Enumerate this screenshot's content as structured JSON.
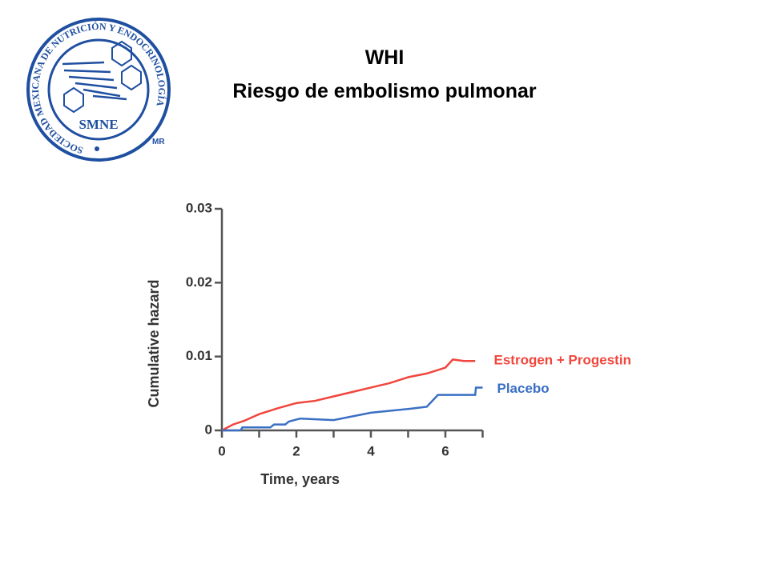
{
  "logo": {
    "ring_text": "SOCIEDAD MEXICANA DE NUTRICIÓN Y ENDOCRINOLOGÍA",
    "acronym": "SMNE",
    "mark": "MR"
  },
  "slide_title": [
    "WHI",
    "Riesgo de embolismo pulmonar"
  ],
  "chart_data": {
    "type": "line",
    "xlabel": "Time, years",
    "ylabel": "Cumulative hazard",
    "xlim": [
      0,
      7
    ],
    "xticks": [
      0,
      2,
      4,
      6
    ],
    "xminorticks": [
      1,
      3,
      5,
      7
    ],
    "ylim": [
      0,
      0.03
    ],
    "yticks": [
      0,
      0.01,
      0.02,
      0.03
    ],
    "series": [
      {
        "name": "Estrogen + Progestin",
        "color": "#f0463c",
        "x": [
          0,
          0.3,
          0.6,
          1,
          1.5,
          2,
          2.5,
          3,
          3.5,
          4,
          4.5,
          5,
          5.5,
          6,
          6.2,
          6.5,
          6.8
        ],
        "values": [
          0,
          0.0008,
          0.0013,
          0.0022,
          0.003,
          0.0037,
          0.004,
          0.0046,
          0.0052,
          0.0058,
          0.0064,
          0.0072,
          0.0077,
          0.0085,
          0.0096,
          0.0094,
          0.0094
        ]
      },
      {
        "name": "Placebo",
        "color": "#3a6fc4",
        "x": [
          0,
          0.5,
          0.55,
          1.3,
          1.4,
          1.7,
          1.8,
          2.1,
          3,
          4,
          5,
          5.5,
          5.8,
          6.8,
          6.82,
          7
        ],
        "values": [
          0,
          0,
          0.0004,
          0.0004,
          0.0008,
          0.0008,
          0.0012,
          0.0016,
          0.0014,
          0.0024,
          0.0029,
          0.0032,
          0.0048,
          0.0048,
          0.0058,
          0.0058
        ]
      }
    ]
  }
}
